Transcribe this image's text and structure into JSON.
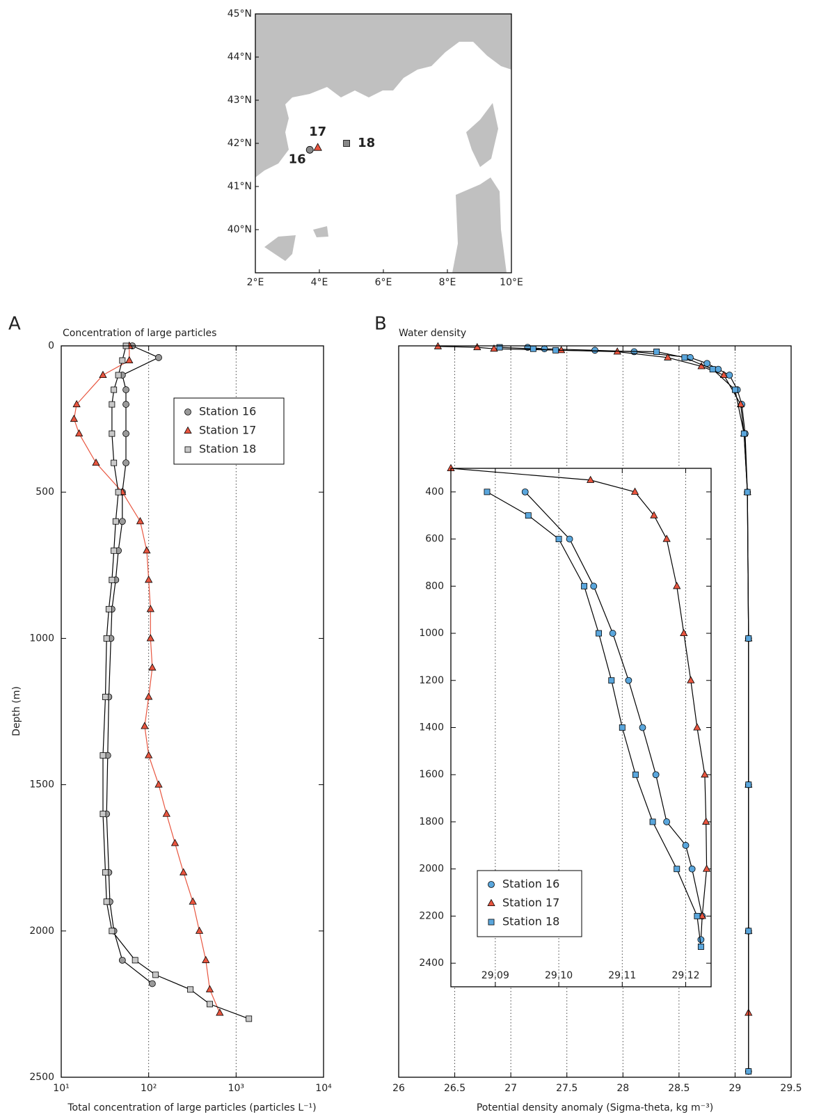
{
  "chart_data": [
    {
      "type": "map",
      "xlim": [
        2,
        10
      ],
      "ylim": [
        39,
        45
      ],
      "xticks": [
        {
          "value": 2,
          "label": "2°E"
        },
        {
          "value": 4,
          "label": "4°E"
        },
        {
          "value": 6,
          "label": "6°E"
        },
        {
          "value": 8,
          "label": "8°E"
        },
        {
          "value": 10,
          "label": "10°E"
        }
      ],
      "yticks": [
        {
          "value": 40,
          "label": "40°N"
        },
        {
          "value": 41,
          "label": "41°N"
        },
        {
          "value": 42,
          "label": "42°N"
        },
        {
          "value": 43,
          "label": "43°N"
        },
        {
          "value": 44,
          "label": "44°N"
        },
        {
          "value": 45,
          "label": "45°N"
        }
      ],
      "land_color": "#c0c0c0",
      "stations": [
        {
          "name": "16",
          "lon": 3.7,
          "lat": 41.85,
          "marker": "circle",
          "color": "#888888"
        },
        {
          "name": "17",
          "lon": 3.95,
          "lat": 41.9,
          "marker": "triangle",
          "color": "#e8553f"
        },
        {
          "name": "18",
          "lon": 4.85,
          "lat": 42.0,
          "marker": "square",
          "color": "#888888"
        }
      ]
    },
    {
      "type": "scatter",
      "panel": "A",
      "title": "Concentration of large particles",
      "x_label": "Total concentration of large particles (particles L⁻¹)",
      "y_label": "Depth (m)",
      "xscale": "log",
      "xlim": [
        10,
        10000
      ],
      "ylim": [
        0,
        2500
      ],
      "y_inverted": true,
      "grid": true,
      "xticks": [
        {
          "value": 10,
          "label": "10¹"
        },
        {
          "value": 100,
          "label": "10²"
        },
        {
          "value": 1000,
          "label": "10³"
        },
        {
          "value": 10000,
          "label": "10⁴"
        }
      ],
      "yticks": [
        0,
        500,
        1000,
        1500,
        2000,
        2500
      ],
      "series": [
        {
          "name": "Station 16",
          "marker": "circle",
          "color": "#9a9a9a",
          "line_color": "#000000",
          "x": [
            65,
            130,
            50,
            55,
            55,
            55,
            55,
            50,
            50,
            45,
            42,
            38,
            37,
            35,
            34,
            33,
            35,
            36,
            40,
            50,
            110
          ],
          "y": [
            0,
            40,
            100,
            150,
            200,
            300,
            400,
            500,
            600,
            700,
            800,
            900,
            1000,
            1200,
            1400,
            1600,
            1800,
            1900,
            2000,
            2100,
            2180
          ]
        },
        {
          "name": "Station 17",
          "marker": "triangle",
          "color": "#e8553f",
          "line_color": "#e8553f",
          "x": [
            60,
            60,
            30,
            15,
            14,
            16,
            25,
            50,
            80,
            95,
            100,
            105,
            105,
            110,
            100,
            90,
            100,
            130,
            160,
            200,
            250,
            320,
            380,
            450,
            500,
            650
          ],
          "y": [
            0,
            50,
            100,
            200,
            250,
            300,
            400,
            500,
            600,
            700,
            800,
            900,
            1000,
            1100,
            1200,
            1300,
            1400,
            1500,
            1600,
            1700,
            1800,
            1900,
            2000,
            2100,
            2200,
            2280
          ]
        },
        {
          "name": "Station 18",
          "marker": "square",
          "color": "#c8c8c8",
          "line_color": "#000000",
          "x": [
            55,
            50,
            45,
            40,
            38,
            38,
            40,
            45,
            42,
            40,
            38,
            35,
            33,
            32,
            30,
            30,
            32,
            33,
            38,
            70,
            120,
            300,
            500,
            1400
          ],
          "y": [
            0,
            50,
            100,
            150,
            200,
            300,
            400,
            500,
            600,
            700,
            800,
            900,
            1000,
            1200,
            1400,
            1600,
            1800,
            1900,
            2000,
            2100,
            2150,
            2200,
            2250,
            2300
          ]
        }
      ]
    },
    {
      "type": "scatter",
      "panel": "B",
      "title": "Water density",
      "x_label": "Potential density anomaly (Sigma-theta, kg m⁻³)",
      "xscale": "linear",
      "xlim": [
        26,
        29.5
      ],
      "ylim": [
        0,
        2500
      ],
      "y_inverted": true,
      "grid": true,
      "xticks": [
        26,
        26.5,
        27,
        27.5,
        28,
        28.5,
        29,
        29.5
      ],
      "series": [
        {
          "name": "Station 16",
          "marker": "circle",
          "color": "#5aa6dc",
          "line_color": "#000000",
          "x": [
            27.15,
            27.3,
            27.75,
            28.1,
            28.6,
            28.75,
            28.85,
            28.95,
            29.02,
            29.06,
            29.09,
            29.11,
            29.12,
            29.12,
            29.12,
            29.12
          ],
          "y": [
            5,
            10,
            15,
            20,
            40,
            60,
            80,
            100,
            150,
            200,
            300,
            500,
            1000,
            1500,
            2000,
            2480
          ]
        },
        {
          "name": "Station 17",
          "marker": "triangle",
          "color": "#e8553f",
          "line_color": "#000000",
          "x": [
            26.35,
            26.7,
            26.85,
            27.45,
            27.95,
            28.4,
            28.7,
            28.9,
            29.05,
            29.08,
            29.11,
            29.12,
            29.12,
            29.12,
            29.12
          ],
          "y": [
            2,
            5,
            10,
            15,
            20,
            40,
            70,
            100,
            200,
            300,
            500,
            1000,
            1500,
            2000,
            2280
          ]
        },
        {
          "name": "Station 18",
          "marker": "square",
          "color": "#5aa6dc",
          "line_color": "#000000",
          "x": [
            26.9,
            27.2,
            27.4,
            28.3,
            28.55,
            28.8,
            29.0,
            29.08,
            29.11,
            29.12,
            29.12,
            29.12,
            29.12
          ],
          "y": [
            5,
            10,
            15,
            20,
            40,
            80,
            150,
            300,
            500,
            1000,
            1500,
            2000,
            2480
          ]
        }
      ],
      "inset": {
        "xscale": "linear",
        "xlim": [
          29.083,
          29.124
        ],
        "ylim": [
          300,
          2500
        ],
        "y_inverted": true,
        "grid": true,
        "xticks": [
          29.09,
          {
            "value": 29.1,
            "label": "29.10"
          },
          29.11,
          29.12
        ],
        "yticks": [
          400,
          600,
          800,
          1000,
          1200,
          1400,
          1600,
          1800,
          2000,
          2200,
          2400
        ],
        "series": [
          {
            "marker": "circle",
            "color": "#5aa6dc",
            "line_color": "#000000",
            "x": [
              29.0947,
              29.1017,
              29.1055,
              29.1085,
              29.111,
              29.1132,
              29.1153,
              29.117,
              29.12,
              29.121,
              29.1226,
              29.1224
            ],
            "y": [
              400,
              600,
              800,
              1000,
              1200,
              1400,
              1600,
              1800,
              1900,
              2000,
              2200,
              2300
            ]
          },
          {
            "marker": "triangle",
            "color": "#e8553f",
            "line_color": "#000000",
            "x": [
              29.083,
              29.105,
              29.112,
              29.115,
              29.117,
              29.1186,
              29.1197,
              29.1208,
              29.1218,
              29.123,
              29.1232,
              29.1233,
              29.1226
            ],
            "y": [
              300,
              350,
              400,
              500,
              600,
              800,
              1000,
              1200,
              1400,
              1600,
              1800,
              2000,
              2200
            ]
          },
          {
            "marker": "square",
            "color": "#5aa6dc",
            "line_color": "#000000",
            "x": [
              29.0887,
              29.0952,
              29.1,
              29.104,
              29.1063,
              29.1083,
              29.11,
              29.1121,
              29.1148,
              29.1186,
              29.1218,
              29.1224
            ],
            "y": [
              400,
              500,
              600,
              800,
              1000,
              1200,
              1400,
              1600,
              1800,
              2000,
              2200,
              2330
            ]
          }
        ]
      }
    }
  ]
}
